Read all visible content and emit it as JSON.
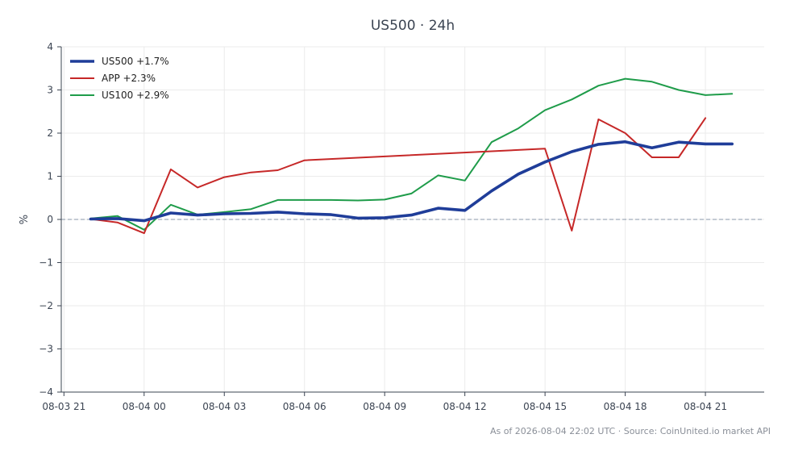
{
  "chart_data": {
    "type": "line",
    "title": "US500 · 24h",
    "xlabel": "",
    "ylabel": "%",
    "x_tick_labels": [
      "08-03 21",
      "08-04 00",
      "08-04 03",
      "08-04 06",
      "08-04 09",
      "08-04 12",
      "08-04 15",
      "08-04 18",
      "08-04 21"
    ],
    "y_ticks": [
      -4,
      -3,
      -2,
      -1,
      0,
      1,
      2,
      3,
      4
    ],
    "y_tick_labels": [
      "−4",
      "−3",
      "−2",
      "−1",
      "0",
      "1",
      "2",
      "3",
      "4"
    ],
    "x_unit": "hours from 08-03 21:00 UTC",
    "xlim": [
      -0.1,
      26.2
    ],
    "ylim": [
      -4,
      4
    ],
    "grid": true,
    "zero_reference_line": true,
    "legend_position": "top-left",
    "series": [
      {
        "name": "US500 +1.7%",
        "color": "#1f3d99",
        "x": [
          1,
          2,
          3,
          4,
          5,
          6,
          7,
          8,
          9,
          10,
          11,
          12,
          13,
          14,
          15,
          16,
          17,
          18,
          19,
          20,
          21,
          22,
          23,
          24,
          25
        ],
        "values": [
          0.01,
          0.02,
          -0.03,
          0.15,
          0.1,
          0.13,
          0.14,
          0.17,
          0.13,
          0.11,
          0.03,
          0.04,
          0.1,
          0.26,
          0.21,
          0.66,
          1.05,
          1.33,
          1.57,
          1.74,
          1.8,
          1.66,
          1.79,
          1.75,
          1.75
        ]
      },
      {
        "name": "APP +2.3%",
        "color": "#c62828",
        "x": [
          1,
          2,
          3,
          4,
          5,
          6,
          7,
          8,
          9,
          18,
          19,
          20,
          21,
          22,
          23,
          24
        ],
        "values": [
          0.01,
          -0.07,
          -0.32,
          1.16,
          0.74,
          0.98,
          1.09,
          1.14,
          1.37,
          1.64,
          -0.26,
          2.32,
          2.0,
          1.44,
          1.44,
          2.35
        ]
      },
      {
        "name": "US100 +2.9%",
        "color": "#1f9c4a",
        "x": [
          1,
          2,
          3,
          4,
          5,
          6,
          7,
          8,
          9,
          10,
          11,
          12,
          13,
          14,
          15,
          16,
          17,
          18,
          19,
          20,
          21,
          22,
          23,
          24,
          25
        ],
        "values": [
          0.02,
          0.08,
          -0.24,
          0.34,
          0.11,
          0.17,
          0.24,
          0.45,
          0.45,
          0.45,
          0.44,
          0.46,
          0.6,
          1.02,
          0.9,
          1.79,
          2.11,
          2.53,
          2.78,
          3.1,
          3.26,
          3.19,
          3.0,
          2.88,
          2.91
        ]
      }
    ]
  },
  "footer": {
    "text": "As of 2026-08-04 22:02 UTC · Source: CoinUnited.io market API"
  }
}
